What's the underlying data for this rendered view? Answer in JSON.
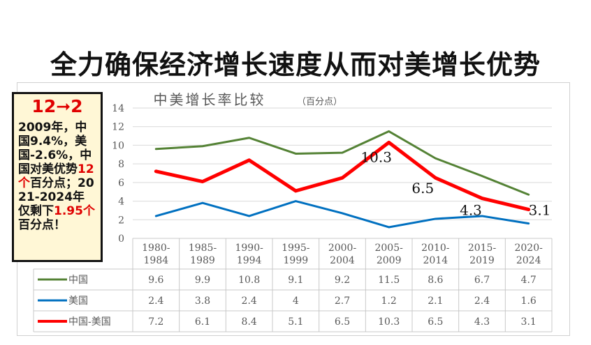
{
  "slide": {
    "title": "全力确保经济增长速度从而对美增长优势"
  },
  "callout": {
    "headline": "12➞2",
    "line1": "2009年，中国9.4%，美国-2.6%，中国对美优势",
    "highlight1": "12个",
    "line2": "百分点；2021-2024年仅剩下",
    "highlight2": "1.95个",
    "line3": "百分点！"
  },
  "colors": {
    "china": "#548235",
    "us": "#0070c0",
    "diff": "#ff0000",
    "grid": "#d9d9d9",
    "highlight": "#e00000",
    "callout_bg": "#fff7d6"
  },
  "chart_data": {
    "type": "line",
    "title": "中美增长率比较",
    "subtitle": "（百分点）",
    "categories": [
      [
        "1980-",
        "1984"
      ],
      [
        "1985-",
        "1989"
      ],
      [
        "1990-",
        "1994"
      ],
      [
        "1995-",
        "1999"
      ],
      [
        "2000-",
        "2004"
      ],
      [
        "2005-",
        "2009"
      ],
      [
        "2010-",
        "2014"
      ],
      [
        "2015-",
        "2019"
      ],
      [
        "2020-",
        "2024"
      ]
    ],
    "yticks": [
      "0",
      "2",
      "4",
      "6",
      "8",
      "10",
      "12",
      "14"
    ],
    "ylim": [
      0,
      14
    ],
    "series": [
      {
        "key": "china",
        "name": "中国",
        "values": [
          9.6,
          9.9,
          10.8,
          9.1,
          9.2,
          11.5,
          8.6,
          6.7,
          4.7
        ],
        "table": [
          "9.6",
          "9.9",
          "10.8",
          "9.1",
          "9.2",
          "11.5",
          "8.6",
          "6.7",
          "4.7"
        ]
      },
      {
        "key": "us",
        "name": "美国",
        "values": [
          2.4,
          3.8,
          2.4,
          4,
          2.7,
          1.2,
          2.1,
          2.4,
          1.6
        ],
        "table": [
          "2.4",
          "3.8",
          "2.4",
          "4",
          "2.7",
          "1.2",
          "2.1",
          "2.4",
          "1.6"
        ]
      },
      {
        "key": "diff",
        "name": "中国-美国",
        "values": [
          7.2,
          6.1,
          8.4,
          5.1,
          6.5,
          10.3,
          6.5,
          4.3,
          3.1
        ],
        "table": [
          "7.2",
          "6.1",
          "8.4",
          "5.1",
          "6.5",
          "10.3",
          "6.5",
          "4.3",
          "3.1"
        ]
      }
    ],
    "annotations": [
      {
        "text": "10.3",
        "index": 5
      },
      {
        "text": "6.5",
        "index": 6
      },
      {
        "text": "4.3",
        "index": 7
      },
      {
        "text": "3.1",
        "index": 8
      }
    ]
  }
}
